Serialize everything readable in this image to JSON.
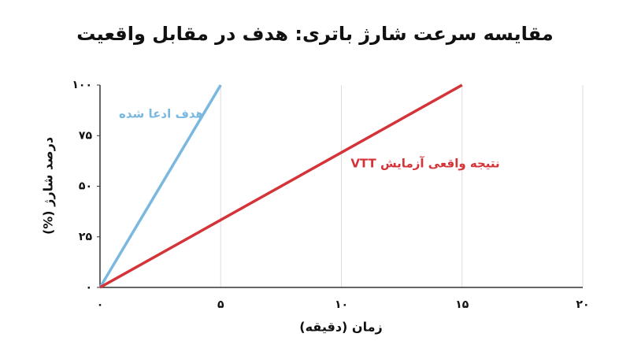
{
  "chart_data": {
    "type": "line",
    "title": "مقایسه سرعت شارژ باتری: هدف در مقابل واقعیت",
    "x_label": "زمان (دقیقه)",
    "y_label": "درصد شارژ (%)",
    "xlim": [
      0,
      20
    ],
    "ylim": [
      0,
      100
    ],
    "xticks": [
      {
        "value": 0,
        "label": "۰"
      },
      {
        "value": 5,
        "label": "۵"
      },
      {
        "value": 10,
        "label": "۱۰"
      },
      {
        "value": 15,
        "label": "۱۵"
      },
      {
        "value": 20,
        "label": "۲۰"
      }
    ],
    "yticks": [
      {
        "value": 0,
        "label": "۰"
      },
      {
        "value": 25,
        "label": "۲۵"
      },
      {
        "value": 50,
        "label": "۵۰"
      },
      {
        "value": 75,
        "label": "۷۵"
      },
      {
        "value": 100,
        "label": "۱۰۰"
      }
    ],
    "grid": true,
    "series": [
      {
        "name": "هدف ادعا شده",
        "color": "#7ab8df",
        "x": [
          0,
          5
        ],
        "values": [
          0,
          100
        ]
      },
      {
        "name": "نتیجه واقعی آزمایش VTT",
        "color": "#d43338",
        "x": [
          0,
          15
        ],
        "values": [
          0,
          100
        ]
      }
    ]
  }
}
